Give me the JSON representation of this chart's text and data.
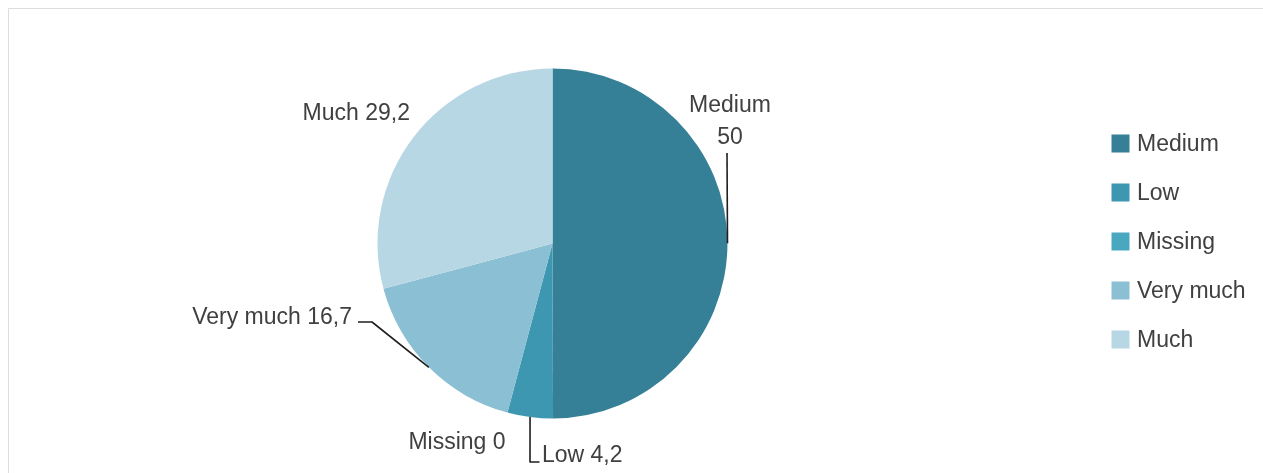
{
  "chart_data": {
    "type": "pie",
    "categories": [
      "Medium",
      "Low",
      "Missing",
      "Very much",
      "Much"
    ],
    "values": [
      50,
      4.2,
      0,
      16.7,
      29.2
    ],
    "colors": [
      "#357f97",
      "#3e97b1",
      "#4aa7c0",
      "#8bbfd4",
      "#b8d7e4"
    ],
    "value_labels": [
      "50",
      "4,2",
      "0",
      "16,7",
      "29,2"
    ],
    "legend": "right"
  }
}
